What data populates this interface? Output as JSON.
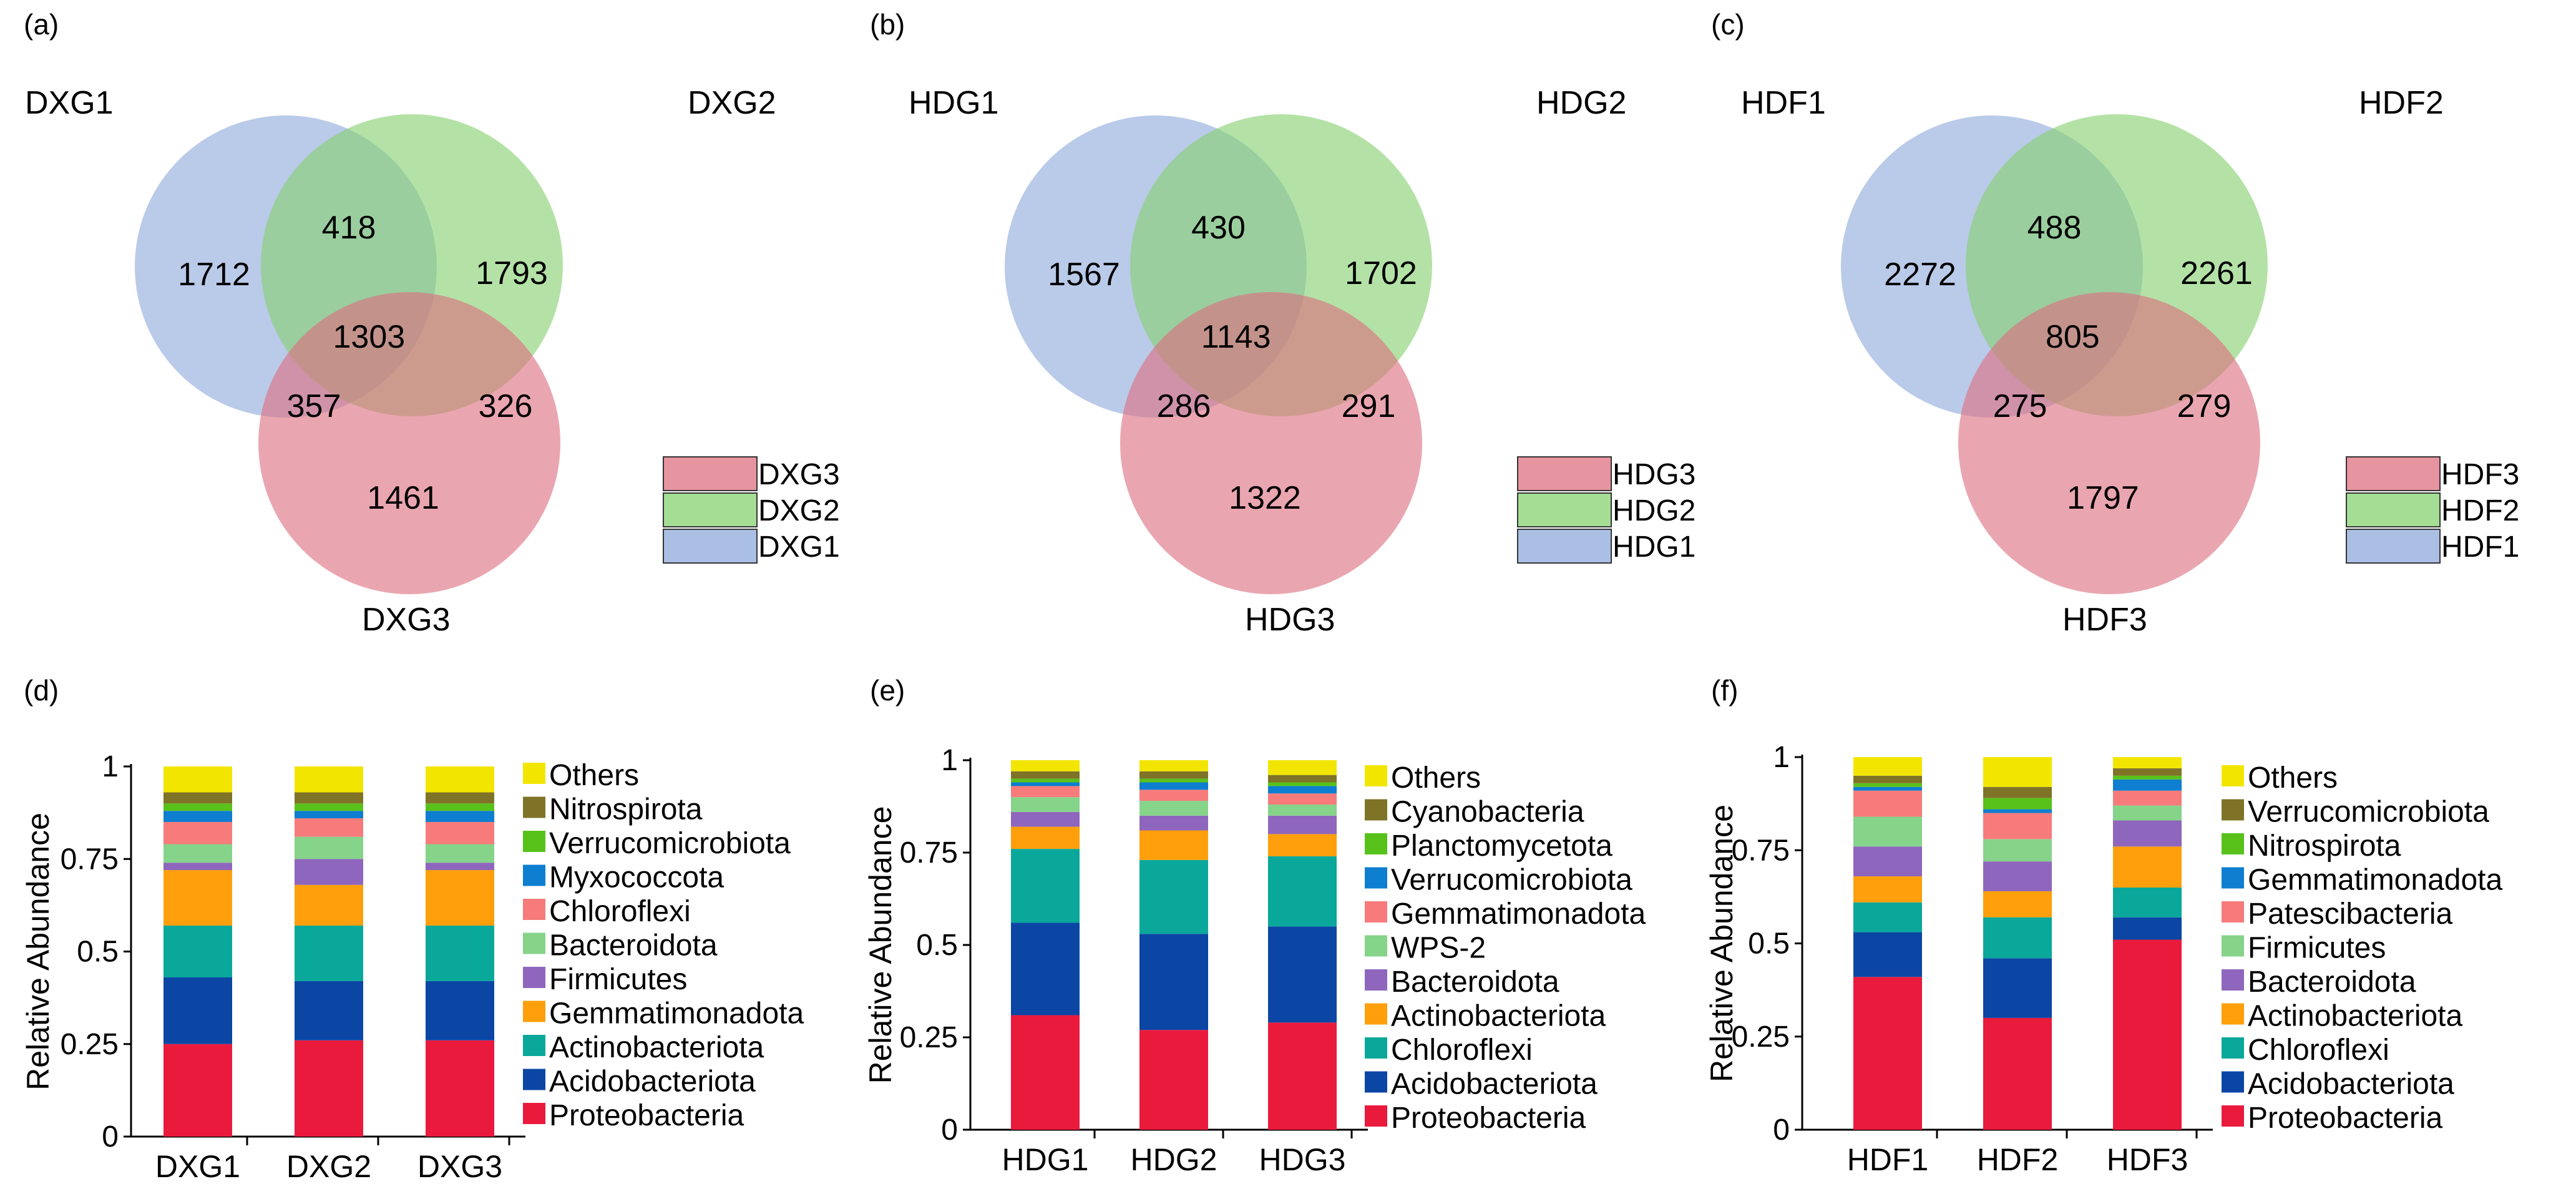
{
  "venn": [
    {
      "panel_label": "(a)",
      "set_labels": [
        "DXG1",
        "DXG2",
        "DXG3"
      ],
      "regions": {
        "only_1": "1712",
        "only_2": "1793",
        "only_3": "1461",
        "r12": "418",
        "r13": "357",
        "r23": "326",
        "r123": "1303"
      },
      "legend": [
        "DXG3",
        "DXG2",
        "DXG1"
      ]
    },
    {
      "panel_label": "(b)",
      "set_labels": [
        "HDG1",
        "HDG2",
        "HDG3"
      ],
      "regions": {
        "only_1": "1567",
        "only_2": "1702",
        "only_3": "1322",
        "r12": "430",
        "r13": "286",
        "r23": "291",
        "r123": "1143"
      },
      "legend": [
        "HDG3",
        "HDG2",
        "HDG1"
      ]
    },
    {
      "panel_label": "(c)",
      "set_labels": [
        "HDF1",
        "HDF2",
        "HDF3"
      ],
      "regions": {
        "only_1": "2272",
        "only_2": "2261",
        "only_3": "1797",
        "r12": "488",
        "r13": "275",
        "r23": "279",
        "r123": "805"
      },
      "legend": [
        "HDF3",
        "HDF2",
        "HDF1"
      ]
    }
  ],
  "venn_colors": {
    "set1": "#8fa9dc",
    "set2": "#86d170",
    "set3": "#dd7080"
  },
  "chart_data": [
    {
      "type": "bar",
      "stacked": true,
      "panel_label": "(d)",
      "ylabel": "Relative Abundance",
      "ylim": [
        0,
        1
      ],
      "yticks": [
        "0",
        "0.25",
        "0.5",
        "0.75",
        "1"
      ],
      "categories": [
        "DXG1",
        "DXG2",
        "DXG3"
      ],
      "series": [
        {
          "name": "Proteobacteria",
          "color": "#ea1a3d",
          "values": [
            0.25,
            0.26,
            0.26
          ]
        },
        {
          "name": "Acidobacteriota",
          "color": "#0b46a5",
          "values": [
            0.18,
            0.16,
            0.16
          ]
        },
        {
          "name": "Actinobacteriota",
          "color": "#0aa89b",
          "values": [
            0.14,
            0.15,
            0.15
          ]
        },
        {
          "name": "Gemmatimonadota",
          "color": "#ff9f0b",
          "values": [
            0.15,
            0.11,
            0.15
          ]
        },
        {
          "name": "Firmicutes",
          "color": "#8f66bd",
          "values": [
            0.02,
            0.07,
            0.02
          ]
        },
        {
          "name": "Bacteroidota",
          "color": "#86d38a",
          "values": [
            0.05,
            0.06,
            0.05
          ]
        },
        {
          "name": "Chloroflexi",
          "color": "#f77b7b",
          "values": [
            0.06,
            0.05,
            0.06
          ]
        },
        {
          "name": "Myxococcota",
          "color": "#0d7ed0",
          "values": [
            0.03,
            0.02,
            0.03
          ]
        },
        {
          "name": "Verrucomicrobiota",
          "color": "#58c21b",
          "values": [
            0.02,
            0.02,
            0.02
          ]
        },
        {
          "name": "Nitrospirota",
          "color": "#7f7327",
          "values": [
            0.03,
            0.03,
            0.03
          ]
        },
        {
          "name": "Others",
          "color": "#f2e600",
          "values": [
            0.07,
            0.07,
            0.07
          ]
        }
      ]
    },
    {
      "type": "bar",
      "stacked": true,
      "panel_label": "(e)",
      "ylabel": "Relative Abundance",
      "ylim": [
        0,
        1
      ],
      "yticks": [
        "0",
        "0.25",
        "0.5",
        "0.75",
        "1"
      ],
      "categories": [
        "HDG1",
        "HDG2",
        "HDG3"
      ],
      "series": [
        {
          "name": "Proteobacteria",
          "color": "#ea1a3d",
          "values": [
            0.31,
            0.27,
            0.29
          ]
        },
        {
          "name": "Acidobacteriota",
          "color": "#0b46a5",
          "values": [
            0.25,
            0.26,
            0.26
          ]
        },
        {
          "name": "Chloroflexi",
          "color": "#0aa89b",
          "values": [
            0.2,
            0.2,
            0.19
          ]
        },
        {
          "name": "Actinobacteriota",
          "color": "#ff9f0b",
          "values": [
            0.06,
            0.08,
            0.06
          ]
        },
        {
          "name": "Bacteroidota",
          "color": "#8f66bd",
          "values": [
            0.04,
            0.04,
            0.05
          ]
        },
        {
          "name": "WPS-2",
          "color": "#86d38a",
          "values": [
            0.04,
            0.04,
            0.03
          ]
        },
        {
          "name": "Gemmatimonadota",
          "color": "#f77b7b",
          "values": [
            0.03,
            0.03,
            0.03
          ]
        },
        {
          "name": "Verrucomicrobiota",
          "color": "#0d7ed0",
          "values": [
            0.01,
            0.02,
            0.02
          ]
        },
        {
          "name": "Planctomycetota",
          "color": "#58c21b",
          "values": [
            0.01,
            0.01,
            0.01
          ]
        },
        {
          "name": "Cyanobacteria",
          "color": "#7f7327",
          "values": [
            0.02,
            0.02,
            0.02
          ]
        },
        {
          "name": "Others",
          "color": "#f2e600",
          "values": [
            0.03,
            0.03,
            0.04
          ]
        }
      ]
    },
    {
      "type": "bar",
      "stacked": true,
      "panel_label": "(f)",
      "ylabel": "Relative Abundance",
      "ylim": [
        0,
        1
      ],
      "yticks": [
        "0",
        "0.25",
        "0.5",
        "0.75",
        "1"
      ],
      "categories": [
        "HDF1",
        "HDF2",
        "HDF3"
      ],
      "series": [
        {
          "name": "Proteobacteria",
          "color": "#ea1a3d",
          "values": [
            0.41,
            0.3,
            0.51
          ]
        },
        {
          "name": "Acidobacteriota",
          "color": "#0b46a5",
          "values": [
            0.12,
            0.16,
            0.06
          ]
        },
        {
          "name": "Chloroflexi",
          "color": "#0aa89b",
          "values": [
            0.08,
            0.11,
            0.08
          ]
        },
        {
          "name": "Actinobacteriota",
          "color": "#ff9f0b",
          "values": [
            0.07,
            0.07,
            0.11
          ]
        },
        {
          "name": "Bacteroidota",
          "color": "#8f66bd",
          "values": [
            0.08,
            0.08,
            0.07
          ]
        },
        {
          "name": "Firmicutes",
          "color": "#86d38a",
          "values": [
            0.08,
            0.06,
            0.04
          ]
        },
        {
          "name": "Patescibacteria",
          "color": "#f77b7b",
          "values": [
            0.07,
            0.07,
            0.04
          ]
        },
        {
          "name": "Gemmatimonadota",
          "color": "#0d7ed0",
          "values": [
            0.01,
            0.01,
            0.03
          ]
        },
        {
          "name": "Nitrospirota",
          "color": "#58c21b",
          "values": [
            0.01,
            0.03,
            0.01
          ]
        },
        {
          "name": "Verrucomicrobiota",
          "color": "#7f7327",
          "values": [
            0.02,
            0.03,
            0.02
          ]
        },
        {
          "name": "Others",
          "color": "#f2e600",
          "values": [
            0.05,
            0.08,
            0.03
          ]
        }
      ]
    }
  ]
}
